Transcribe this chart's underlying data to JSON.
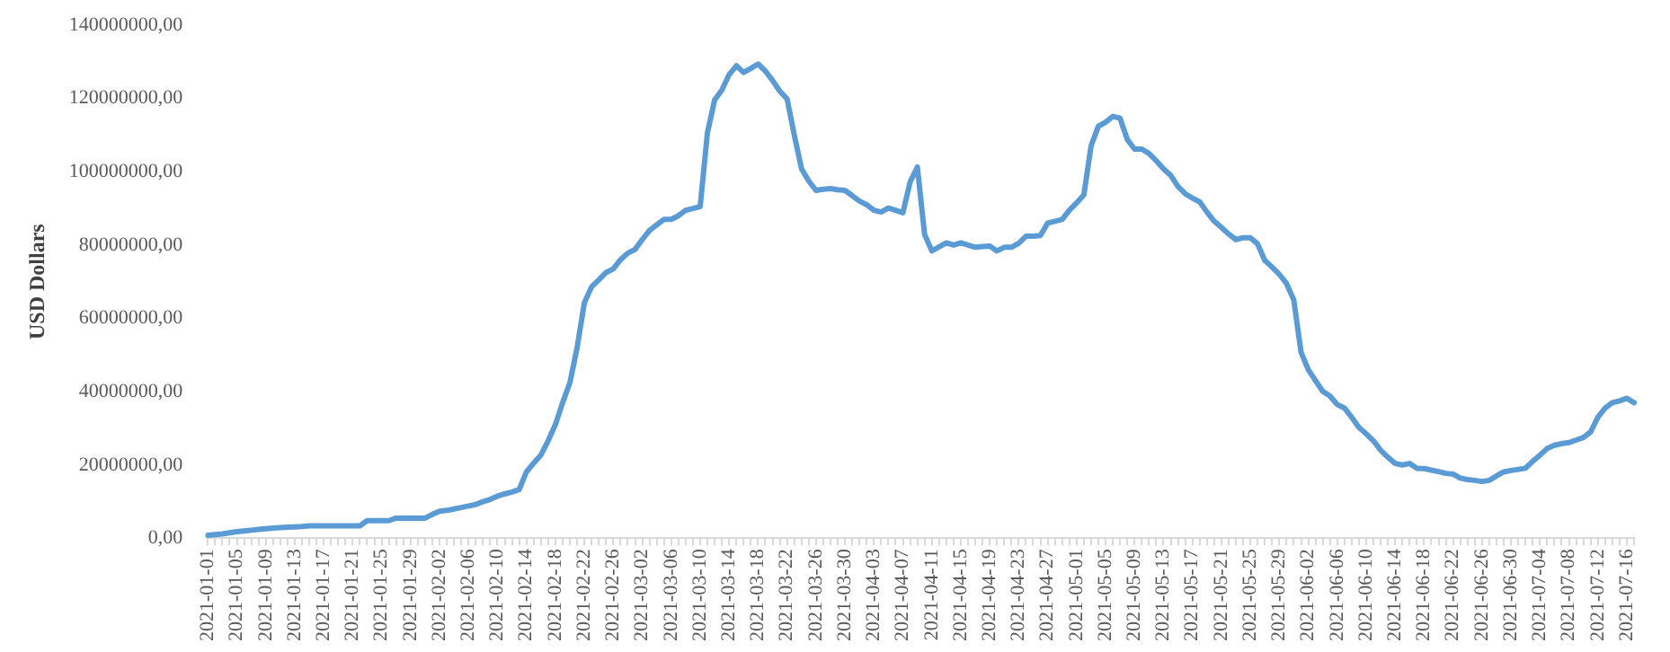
{
  "chart_data": {
    "type": "line",
    "ylabel": "USD Dollars",
    "marker": "none",
    "line_style": "solid",
    "categories": [
      "2021-01-01",
      null,
      null,
      null,
      "2021-01-05",
      null,
      null,
      null,
      "2021-01-09",
      null,
      null,
      null,
      "2021-01-13",
      null,
      null,
      null,
      "2021-01-17",
      null,
      null,
      null,
      "2021-01-21",
      null,
      null,
      null,
      "2021-01-25",
      null,
      null,
      null,
      "2021-01-29",
      null,
      null,
      null,
      "2021-02-02",
      null,
      null,
      null,
      "2021-02-06",
      null,
      null,
      null,
      "2021-02-10",
      null,
      null,
      null,
      "2021-02-14",
      null,
      null,
      null,
      "2021-02-18",
      null,
      null,
      null,
      "2021-02-22",
      null,
      null,
      null,
      "2021-02-26",
      null,
      null,
      null,
      "2021-03-02",
      null,
      null,
      null,
      "2021-03-06",
      null,
      null,
      null,
      "2021-03-10",
      null,
      null,
      null,
      "2021-03-14",
      null,
      null,
      null,
      "2021-03-18",
      null,
      null,
      null,
      "2021-03-22",
      null,
      null,
      null,
      "2021-03-26",
      null,
      null,
      null,
      "2021-03-30",
      null,
      null,
      null,
      "2021-04-03",
      null,
      null,
      null,
      "2021-04-07",
      null,
      null,
      null,
      "2021-04-11",
      null,
      null,
      null,
      "2021-04-15",
      null,
      null,
      null,
      "2021-04-19",
      null,
      null,
      null,
      "2021-04-23",
      null,
      null,
      null,
      "2021-04-27",
      null,
      null,
      null,
      "2021-05-01",
      null,
      null,
      null,
      "2021-05-05",
      null,
      null,
      null,
      "2021-05-09",
      null,
      null,
      null,
      "2021-05-13",
      null,
      null,
      null,
      "2021-05-17",
      null,
      null,
      null,
      "2021-05-21",
      null,
      null,
      null,
      "2021-05-25",
      null,
      null,
      null,
      "2021-05-29",
      null,
      null,
      null,
      "2021-06-02",
      null,
      null,
      null,
      "2021-06-06",
      null,
      null,
      null,
      "2021-06-10",
      null,
      null,
      null,
      "2021-06-14",
      null,
      null,
      null,
      "2021-06-18",
      null,
      null,
      null,
      "2021-06-22",
      null,
      null,
      null,
      "2021-06-26",
      null,
      null,
      null,
      "2021-06-30",
      null,
      null,
      null,
      "2021-07-04",
      null,
      null,
      null,
      "2021-07-08",
      null,
      null,
      null,
      "2021-07-12",
      null,
      null,
      null,
      "2021-07-16",
      null
    ],
    "series": [
      {
        "color": "#5b9bd5",
        "values": [
          800000,
          1000000,
          1200000,
          1500000,
          1800000,
          2000000,
          2200000,
          2400000,
          2600000,
          2800000,
          2900000,
          3000000,
          3100000,
          3200000,
          3400000,
          3400000,
          3400000,
          3400000,
          3400000,
          3400000,
          3400000,
          3400000,
          4800000,
          4800000,
          4800000,
          4800000,
          5500000,
          5500000,
          5500000,
          5500000,
          5500000,
          6500000,
          7400000,
          7600000,
          8000000,
          8400000,
          8800000,
          9200000,
          10000000,
          10600000,
          11500000,
          12100000,
          12600000,
          13300000,
          18100000,
          20500000,
          22700000,
          26600000,
          31000000,
          37000000,
          42400000,
          52000000,
          64200000,
          68600000,
          70500000,
          72500000,
          73500000,
          76000000,
          77800000,
          78800000,
          81500000,
          84000000,
          85500000,
          87000000,
          87000000,
          88000000,
          89500000,
          90000000,
          90500000,
          110600000,
          119600000,
          122300000,
          126500000,
          128900000,
          127100000,
          128200000,
          129400000,
          127500000,
          124900000,
          122000000,
          119900000,
          110000000,
          100800000,
          97500000,
          94900000,
          95200000,
          95400000,
          95100000,
          94900000,
          93500000,
          92000000,
          91000000,
          89500000,
          89000000,
          90100000,
          89500000,
          88800000,
          97200000,
          101300000,
          82900000,
          78400000,
          79500000,
          80600000,
          80000000,
          80600000,
          80000000,
          79400000,
          79600000,
          79700000,
          78400000,
          79400000,
          79400000,
          80500000,
          82400000,
          82400000,
          82600000,
          86000000,
          86500000,
          87000000,
          89500000,
          91500000,
          93700000,
          107100000,
          112400000,
          113500000,
          115100000,
          114600000,
          108800000,
          106200000,
          106200000,
          105000000,
          103000000,
          100800000,
          99000000,
          96000000,
          94000000,
          92800000,
          91800000,
          89000000,
          86500000,
          84800000,
          83000000,
          81500000,
          82000000,
          82000000,
          80300000,
          75800000,
          74000000,
          72000000,
          69500000,
          65000000,
          50800000,
          46000000,
          43000000,
          40100000,
          38800000,
          36500000,
          35500000,
          33000000,
          30200000,
          28500000,
          26600000,
          24000000,
          22100000,
          20400000,
          20000000,
          20400000,
          19100000,
          19000000,
          18600000,
          18200000,
          17700000,
          17500000,
          16400000,
          16000000,
          15800000,
          15500000,
          15800000,
          17000000,
          18100000,
          18500000,
          18800000,
          19100000,
          21000000,
          22700000,
          24500000,
          25400000,
          25800000,
          26100000,
          26800000,
          27500000,
          29000000,
          33000000,
          35500000,
          37000000,
          37500000,
          38200000,
          37000000
        ]
      }
    ],
    "ylim": [
      0,
      140000000
    ],
    "yticks": [
      {
        "value": 0,
        "label": "0,00"
      },
      {
        "value": 20000000,
        "label": "20000000,00"
      },
      {
        "value": 40000000,
        "label": "40000000,00"
      },
      {
        "value": 60000000,
        "label": "60000000,00"
      },
      {
        "value": 80000000,
        "label": "80000000,00"
      },
      {
        "value": 100000000,
        "label": "100000000,00"
      },
      {
        "value": 120000000,
        "label": "120000000,00"
      },
      {
        "value": 140000000,
        "label": "140000000,00"
      }
    ]
  }
}
